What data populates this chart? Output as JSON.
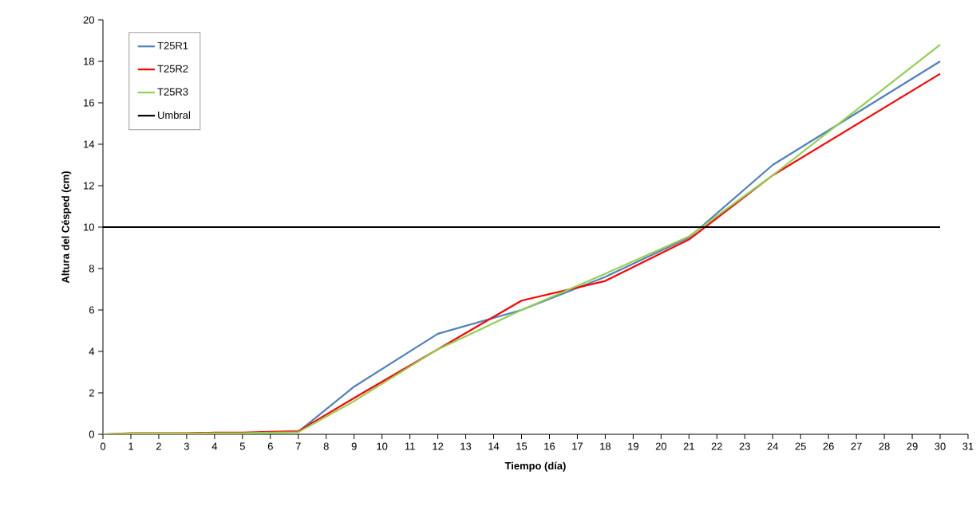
{
  "chart_data": {
    "type": "line",
    "xlabel": "Tiempo (día)",
    "ylabel": "Altura del Césped (cm)",
    "x": [
      0,
      1,
      2,
      3,
      4,
      5,
      6,
      7,
      9,
      12,
      15,
      18,
      21,
      24,
      30
    ],
    "series": [
      {
        "name": "T25R1",
        "color": "#4f81bd",
        "values": [
          null,
          null,
          null,
          null,
          null,
          null,
          null,
          0.12,
          2.3,
          4.85,
          6.0,
          7.6,
          9.5,
          13.0,
          18.0
        ]
      },
      {
        "name": "T25R2",
        "color": "#ff0000",
        "values": [
          0,
          0.05,
          0.05,
          0.05,
          0.08,
          0.08,
          0.12,
          0.15,
          1.75,
          4.1,
          6.45,
          7.4,
          9.4,
          12.5,
          17.4
        ]
      },
      {
        "name": "T25R3",
        "color": "#92d050",
        "values": [
          0,
          0.03,
          0.03,
          0.03,
          0.05,
          0.05,
          0.08,
          0.1,
          1.6,
          4.1,
          6.0,
          7.75,
          9.55,
          12.5,
          18.8
        ]
      },
      {
        "name": "Umbral",
        "color": "#000000",
        "values": [
          10,
          10,
          10,
          10,
          10,
          10,
          10,
          10,
          10,
          10,
          10,
          10,
          10,
          10,
          10
        ]
      }
    ],
    "xlim": [
      0,
      31
    ],
    "xticks": [
      0,
      1,
      2,
      3,
      4,
      5,
      6,
      7,
      8,
      9,
      10,
      11,
      12,
      13,
      14,
      15,
      16,
      17,
      18,
      19,
      20,
      21,
      22,
      23,
      24,
      25,
      26,
      27,
      28,
      29,
      30,
      31
    ],
    "ylim": [
      0,
      20
    ],
    "yticks": [
      0,
      2,
      4,
      6,
      8,
      10,
      12,
      14,
      16,
      18,
      20
    ],
    "grid": false,
    "legend": "top left",
    "marker": "none",
    "line_style": "solid"
  }
}
